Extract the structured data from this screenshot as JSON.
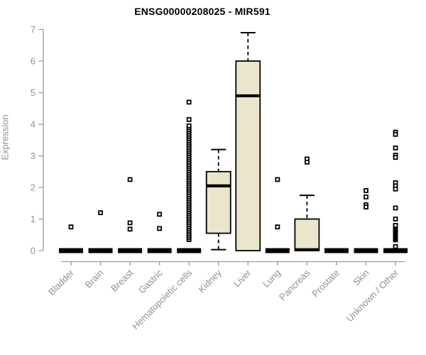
{
  "chart_data": {
    "type": "boxplot",
    "title": "ENSG00000208025 - MIR591",
    "ylabel": "Expression",
    "xlabel": "",
    "ylim": [
      0,
      7
    ],
    "yticks": [
      0,
      1,
      2,
      3,
      4,
      5,
      6,
      7
    ],
    "grid": false,
    "legend": "none",
    "categories": [
      "Bladder",
      "Brain",
      "Breast",
      "Gastric",
      "Hematopoietic cells",
      "Kidney",
      "Liver",
      "Lung",
      "Pancreas",
      "Prostate",
      "Skin",
      "Unknown / Other"
    ],
    "boxes": [
      {
        "category": "Bladder",
        "q1": 0,
        "median": 0,
        "q3": 0,
        "whisker_low": 0,
        "whisker_high": 0,
        "outliers": [
          0.75
        ]
      },
      {
        "category": "Brain",
        "q1": 0,
        "median": 0,
        "q3": 0,
        "whisker_low": 0,
        "whisker_high": 0,
        "outliers": [
          1.2
        ]
      },
      {
        "category": "Breast",
        "q1": 0,
        "median": 0,
        "q3": 0,
        "whisker_low": 0,
        "whisker_high": 0,
        "outliers": [
          2.25,
          0.88,
          0.68
        ]
      },
      {
        "category": "Gastric",
        "q1": 0,
        "median": 0,
        "q3": 0,
        "whisker_low": 0,
        "whisker_high": 0,
        "outliers": [
          1.15,
          0.7
        ]
      },
      {
        "category": "Hematopoietic cells",
        "q1": 0,
        "median": 0,
        "q3": 0,
        "whisker_low": 0,
        "whisker_high": 0,
        "outliers": [
          4.7,
          4.15
        ],
        "outlier_stack": {
          "min": 0.35,
          "max": 3.95,
          "count": 62
        }
      },
      {
        "category": "Kidney",
        "q1": 0.55,
        "median": 2.05,
        "q3": 2.5,
        "whisker_low": 0.03,
        "whisker_high": 3.2,
        "outliers": []
      },
      {
        "category": "Liver",
        "q1": 0,
        "median": 4.9,
        "q3": 6.0,
        "whisker_low": 0,
        "whisker_high": 6.9,
        "outliers": []
      },
      {
        "category": "Lung",
        "q1": 0,
        "median": 0,
        "q3": 0,
        "whisker_low": 0,
        "whisker_high": 0,
        "outliers": [
          2.25,
          0.75
        ]
      },
      {
        "category": "Pancreas",
        "q1": 0,
        "median": 0.03,
        "q3": 1.0,
        "whisker_low": 0,
        "whisker_high": 1.75,
        "outliers": [
          2.9,
          2.8
        ]
      },
      {
        "category": "Prostate",
        "q1": 0,
        "median": 0,
        "q3": 0,
        "whisker_low": 0,
        "whisker_high": 0,
        "outliers": []
      },
      {
        "category": "Skin",
        "q1": 0,
        "median": 0,
        "q3": 0,
        "whisker_low": 0,
        "whisker_high": 0,
        "outliers": [
          1.9,
          1.7,
          1.45,
          1.38
        ]
      },
      {
        "category": "Unknown / Other",
        "q1": 0,
        "median": 0,
        "q3": 0,
        "whisker_low": 0,
        "whisker_high": 0,
        "outliers": [
          3.75,
          3.68,
          3.25,
          3.02,
          2.95,
          2.15,
          2.05,
          1.95,
          1.35,
          1.0,
          0.13
        ],
        "outlier_stack": {
          "min": 0.34,
          "max": 0.8,
          "count": 14
        }
      }
    ],
    "colors": {
      "box_fill": "#EBE5CB",
      "box_stroke": "#000000",
      "median": "#000000",
      "outlier": "#000000",
      "axis": "#9A9A9A",
      "tick_label": "#8B909B",
      "title": "#000000"
    }
  }
}
